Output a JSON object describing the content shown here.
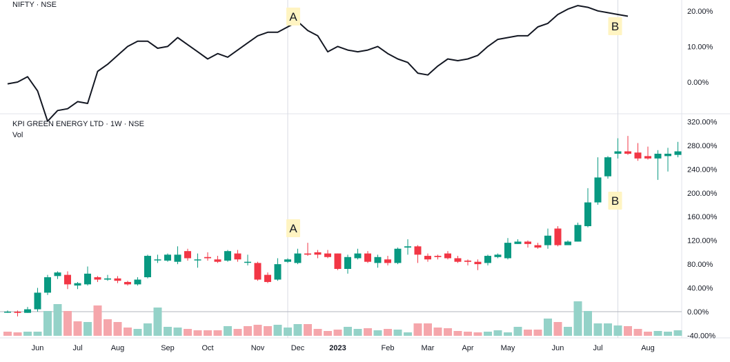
{
  "panes": {
    "top_title": "NIFTY · NSE",
    "bottom_title": "KPI GREEN ENERGY LTD · 1W · NSE",
    "bottom_subtitle": "Vol"
  },
  "colors": {
    "up": "#089981",
    "down": "#f23645",
    "up_volume": "#94d2c8",
    "down_volume": "#f5a6ab",
    "line": "#131722",
    "grid": "#e0e3eb",
    "marker_bg": "#fff4c2",
    "text": "#131722"
  },
  "chart_data": [
    {
      "type": "line",
      "series": [
        {
          "name": "NIFTY · NSE",
          "values": [
            -0.5,
            0,
            1.5,
            -2.5,
            -11,
            -8,
            -7.5,
            -5.5,
            -6,
            3,
            5,
            7.5,
            10,
            11.5,
            11.5,
            9.5,
            10,
            12.5,
            10.5,
            8.5,
            6.5,
            8,
            7,
            9,
            11,
            13,
            14,
            14,
            15.5,
            17,
            14.5,
            13,
            8.5,
            10,
            9,
            8.5,
            9,
            10,
            8,
            6.5,
            5.5,
            2.5,
            2,
            4.5,
            6.5,
            6,
            6.5,
            7.5,
            10,
            12,
            12.5,
            13,
            13,
            15.5,
            16.5,
            19,
            20.5,
            21.5,
            21,
            20,
            19.5,
            19,
            18.5
          ]
        }
      ],
      "y_ticks": [
        "20.00%",
        "10.00%",
        "0.00%"
      ],
      "y_range": [
        -6,
        22
      ],
      "annotations": [
        {
          "label": "A",
          "x_index": 28
        },
        {
          "label": "B",
          "x_index": 61
        }
      ]
    },
    {
      "type": "candlestick",
      "candles": [
        [
          0,
          0,
          2,
          -2
        ],
        [
          0,
          -2,
          2,
          -8
        ],
        [
          -2,
          4,
          8,
          -2
        ],
        [
          4,
          32,
          40,
          0
        ],
        [
          32,
          58,
          62,
          28
        ],
        [
          60,
          66,
          68,
          55
        ],
        [
          62,
          46,
          68,
          38
        ],
        [
          44,
          48,
          50,
          38
        ],
        [
          46,
          64,
          76,
          44
        ],
        [
          58,
          54,
          60,
          50
        ],
        [
          54,
          56,
          62,
          52
        ],
        [
          56,
          52,
          60,
          48
        ],
        [
          50,
          46,
          52,
          44
        ],
        [
          46,
          54,
          58,
          44
        ],
        [
          58,
          94,
          96,
          56
        ],
        [
          88,
          88,
          96,
          82
        ],
        [
          86,
          96,
          98,
          84
        ],
        [
          84,
          96,
          110,
          80
        ],
        [
          102,
          90,
          106,
          86
        ],
        [
          88,
          88,
          98,
          74
        ],
        [
          92,
          90,
          100,
          86
        ],
        [
          88,
          84,
          94,
          82
        ],
        [
          86,
          102,
          104,
          84
        ],
        [
          98,
          88,
          104,
          84
        ],
        [
          84,
          84,
          96,
          78
        ],
        [
          82,
          54,
          84,
          52
        ],
        [
          62,
          50,
          66,
          48
        ],
        [
          54,
          80,
          90,
          52
        ],
        [
          84,
          88,
          90,
          82
        ],
        [
          82,
          98,
          106,
          80
        ],
        [
          98,
          96,
          116,
          94
        ],
        [
          100,
          96,
          104,
          90
        ],
        [
          98,
          92,
          104,
          90
        ],
        [
          98,
          72,
          98,
          70
        ],
        [
          72,
          92,
          96,
          64
        ],
        [
          90,
          98,
          106,
          88
        ],
        [
          98,
          84,
          102,
          82
        ],
        [
          82,
          92,
          96,
          74
        ],
        [
          88,
          82,
          94,
          78
        ],
        [
          82,
          106,
          108,
          80
        ],
        [
          108,
          110,
          122,
          96
        ],
        [
          110,
          96,
          112,
          82
        ],
        [
          94,
          88,
          98,
          84
        ],
        [
          94,
          92,
          96,
          88
        ],
        [
          98,
          90,
          102,
          88
        ],
        [
          90,
          84,
          94,
          82
        ],
        [
          86,
          84,
          88,
          78
        ],
        [
          84,
          80,
          88,
          70
        ],
        [
          82,
          94,
          96,
          78
        ],
        [
          92,
          96,
          98,
          90
        ],
        [
          90,
          116,
          124,
          88
        ],
        [
          114,
          118,
          122,
          114
        ],
        [
          118,
          114,
          120,
          108
        ],
        [
          112,
          108,
          116,
          106
        ],
        [
          112,
          128,
          140,
          106
        ],
        [
          140,
          112,
          144,
          110
        ],
        [
          112,
          118,
          120,
          112
        ],
        [
          118,
          146,
          150,
          118
        ],
        [
          144,
          184,
          208,
          142
        ],
        [
          184,
          226,
          260,
          180
        ],
        [
          228,
          260,
          262,
          224
        ],
        [
          266,
          270,
          292,
          258
        ],
        [
          270,
          266,
          296,
          264
        ],
        [
          268,
          258,
          284,
          254
        ],
        [
          262,
          258,
          278,
          256
        ],
        [
          258,
          266,
          272,
          222
        ],
        [
          262,
          266,
          276,
          236
        ],
        [
          264,
          270,
          286,
          260
        ]
      ],
      "volumes": [
        6,
        5,
        6,
        6,
        36,
        46,
        36,
        21,
        20,
        44,
        24,
        20,
        12,
        10,
        18,
        41,
        13,
        12,
        10,
        8,
        8,
        8,
        14,
        10,
        14,
        16,
        14,
        16,
        12,
        17,
        17,
        10,
        7,
        9,
        13,
        10,
        11,
        8,
        10,
        9,
        5,
        18,
        18,
        12,
        11,
        7,
        6,
        5,
        6,
        8,
        5,
        13,
        9,
        9,
        25,
        20,
        13,
        50,
        36,
        18,
        18,
        15,
        14,
        10,
        6,
        7,
        6,
        8
      ],
      "volume_up": [
        0,
        0,
        1,
        1,
        1,
        1,
        0,
        0,
        1,
        0,
        0,
        0,
        0,
        1,
        1,
        1,
        1,
        1,
        0,
        0,
        0,
        0,
        1,
        0,
        0,
        0,
        0,
        1,
        1,
        1,
        0,
        0,
        0,
        0,
        1,
        1,
        0,
        1,
        0,
        1,
        1,
        0,
        0,
        0,
        0,
        0,
        0,
        0,
        1,
        1,
        1,
        1,
        0,
        0,
        1,
        0,
        1,
        1,
        1,
        1,
        1,
        1,
        0,
        0,
        0,
        1,
        1,
        1
      ],
      "y_ticks": [
        "320.00%",
        "280.00%",
        "240.00%",
        "200.00%",
        "160.00%",
        "120.00%",
        "80.00%",
        "40.00%",
        "0.00%",
        "-40.00%"
      ],
      "y_range": [
        -40,
        320
      ],
      "x_labels": [
        "Jun",
        "Jul",
        "Aug",
        "Sep",
        "Oct",
        "Nov",
        "Dec",
        "2023",
        "Feb",
        "Mar",
        "Apr",
        "May",
        "Jun",
        "Jul",
        "Aug"
      ],
      "x_label_index": [
        3,
        7,
        11,
        16,
        20,
        25,
        29,
        33,
        38,
        42,
        46,
        50,
        55,
        59,
        64
      ],
      "annotations": [
        {
          "label": "A",
          "x_index": 28
        },
        {
          "label": "B",
          "x_index": 61
        }
      ]
    }
  ]
}
